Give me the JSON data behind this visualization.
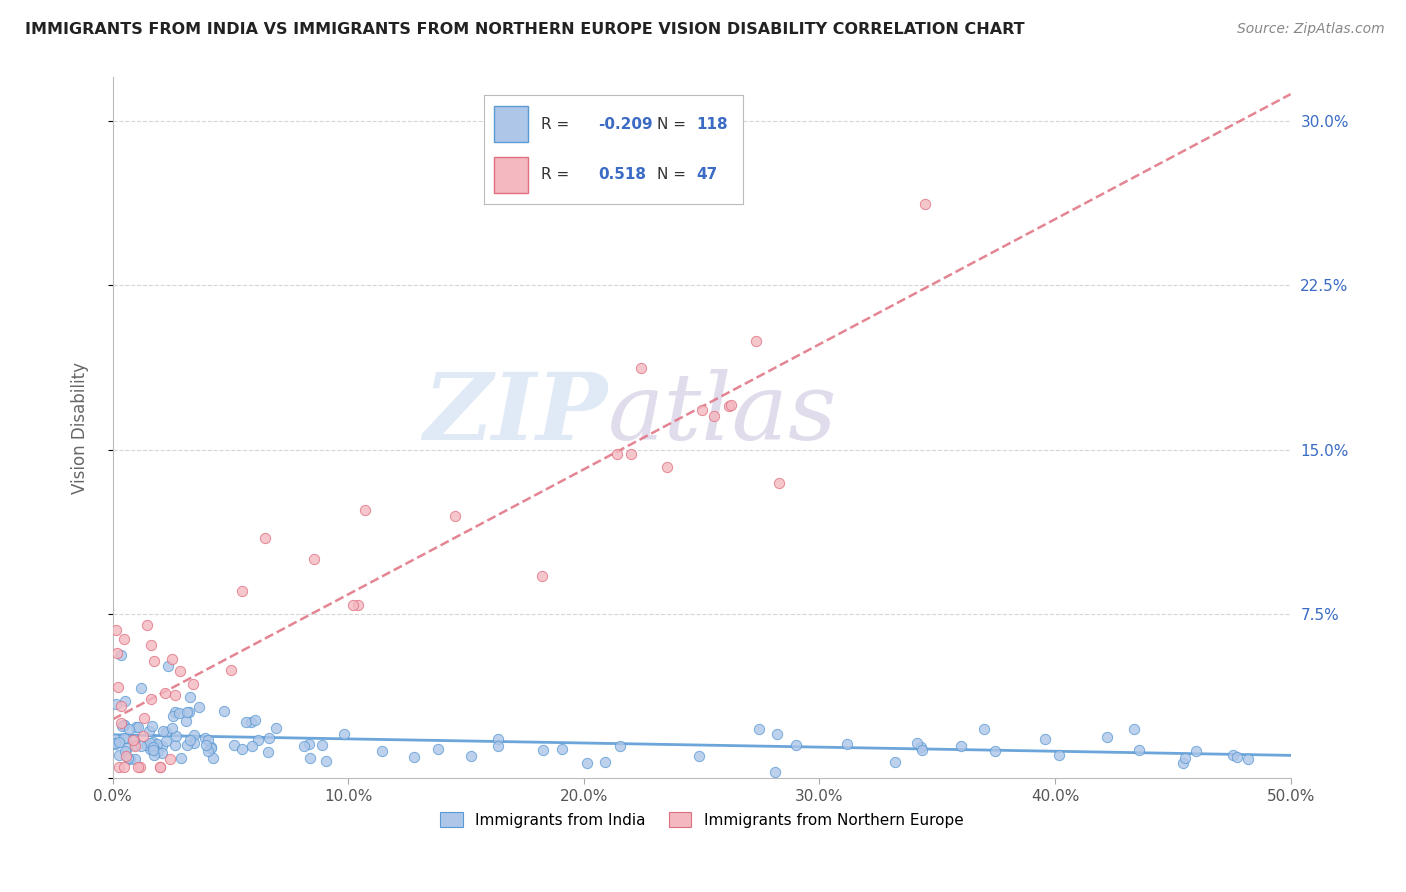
{
  "title": "IMMIGRANTS FROM INDIA VS IMMIGRANTS FROM NORTHERN EUROPE VISION DISABILITY CORRELATION CHART",
  "source": "Source: ZipAtlas.com",
  "ylabel": "Vision Disability",
  "xlim": [
    0.0,
    0.5
  ],
  "ylim": [
    0.0,
    0.32
  ],
  "xtick_vals": [
    0.0,
    0.1,
    0.2,
    0.3,
    0.4,
    0.5
  ],
  "xticklabels": [
    "0.0%",
    "10.0%",
    "20.0%",
    "30.0%",
    "40.0%",
    "50.0%"
  ],
  "ytick_vals": [
    0.0,
    0.075,
    0.15,
    0.225,
    0.3
  ],
  "yticklabels_right": [
    "",
    "7.5%",
    "15.0%",
    "22.5%",
    "30.0%"
  ],
  "india_color": "#aec6e8",
  "india_edge": "#5b9bd5",
  "ne_color": "#f4b8c1",
  "ne_edge": "#e07080",
  "india_R": -0.209,
  "india_N": 118,
  "ne_R": 0.518,
  "ne_N": 47,
  "india_trend_color": "#5b9bd5",
  "india_trend_style": "solid",
  "ne_trend_color": "#e07080",
  "ne_trend_style": "dashed",
  "watermark_zip": "ZIP",
  "watermark_atlas": "atlas",
  "watermark_color_zip": "#c5d8f0",
  "watermark_color_atlas": "#c5c0d8",
  "legend_r_color": "#3b6bc4",
  "legend_n_color": "#3b6bc4",
  "legend_label_color": "#333333",
  "background_color": "#ffffff",
  "grid_color": "#cccccc",
  "india_label": "Immigrants from India",
  "ne_label": "Immigrants from Northern Europe"
}
